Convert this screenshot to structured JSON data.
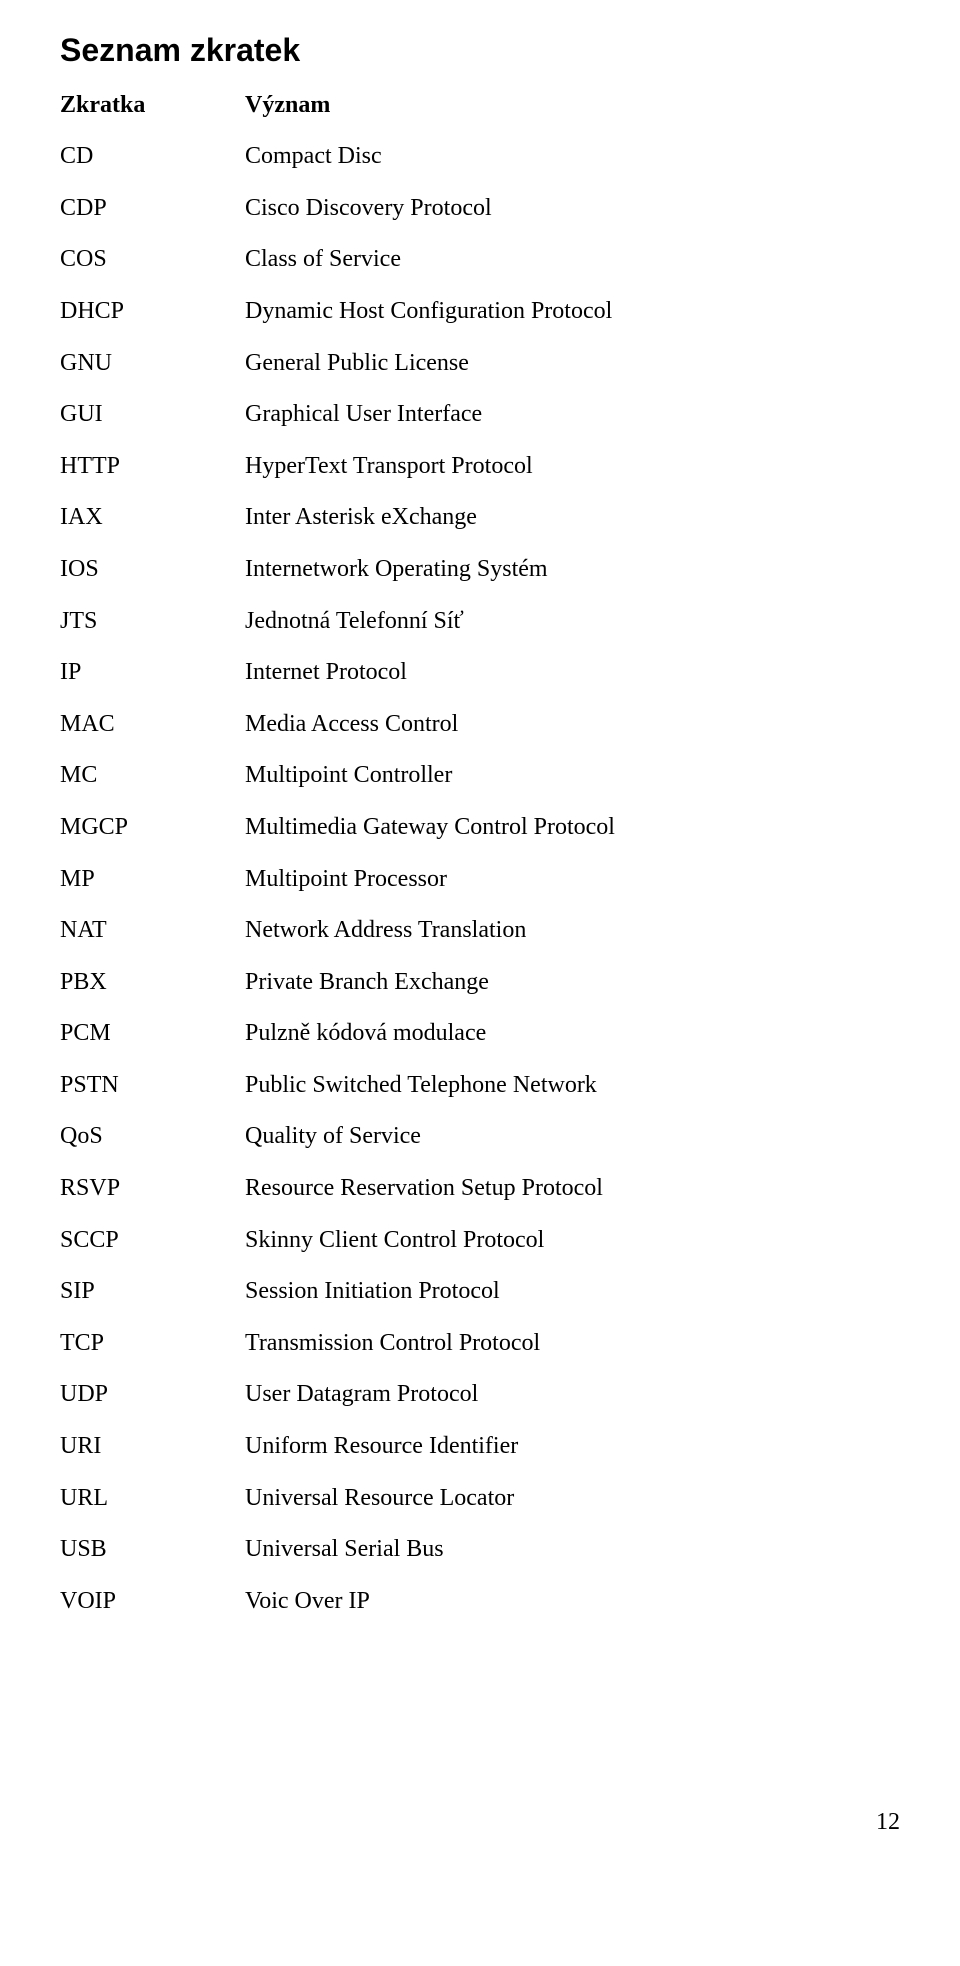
{
  "title": "Seznam zkratek",
  "header_abbr": "Zkratka",
  "header_def": "Význam",
  "rows": [
    {
      "abbr": "CD",
      "def": "Compact Disc"
    },
    {
      "abbr": "CDP",
      "def": "Cisco Discovery Protocol"
    },
    {
      "abbr": "COS",
      "def": "Class of Service"
    },
    {
      "abbr": "DHCP",
      "def": "Dynamic Host Configuration Protocol"
    },
    {
      "abbr": "GNU",
      "def": "General Public License"
    },
    {
      "abbr": "GUI",
      "def": "Graphical User Interface"
    },
    {
      "abbr": "HTTP",
      "def": "HyperText Transport Protocol"
    },
    {
      "abbr": "IAX",
      "def": "Inter Asterisk eXchange"
    },
    {
      "abbr": "IOS",
      "def": "Internetwork Operating Systém"
    },
    {
      "abbr": "JTS",
      "def": "Jednotná Telefonní Síť"
    },
    {
      "abbr": "IP",
      "def": "Internet Protocol"
    },
    {
      "abbr": "MAC",
      "def": "Media Access Control"
    },
    {
      "abbr": "MC",
      "def": "Multipoint Controller"
    },
    {
      "abbr": "MGCP",
      "def": "Multimedia Gateway Control Protocol"
    },
    {
      "abbr": "MP",
      "def": "Multipoint Processor"
    },
    {
      "abbr": "NAT",
      "def": "Network Address Translation"
    },
    {
      "abbr": "PBX",
      "def": "Private Branch Exchange"
    },
    {
      "abbr": "PCM",
      "def": "Pulzně kódová modulace"
    },
    {
      "abbr": "PSTN",
      "def": "Public Switched Telephone Network"
    },
    {
      "abbr": "QoS",
      "def": "Quality of Service"
    },
    {
      "abbr": "RSVP",
      "def": "Resource Reservation Setup Protocol"
    },
    {
      "abbr": "SCCP",
      "def": "Skinny Client Control Protocol"
    },
    {
      "abbr": "SIP",
      "def": "Session Initiation Protocol"
    },
    {
      "abbr": "TCP",
      "def": "Transmission Control Protocol"
    },
    {
      "abbr": "UDP",
      "def": "User Datagram Protocol"
    },
    {
      "abbr": "URI",
      "def": "Uniform Resource Identifier"
    },
    {
      "abbr": "URL",
      "def": "Universal Resource Locator"
    },
    {
      "abbr": "USB",
      "def": "Universal Serial Bus"
    },
    {
      "abbr": "VOIP",
      "def": "Voic Over IP"
    }
  ],
  "page_number": "12"
}
